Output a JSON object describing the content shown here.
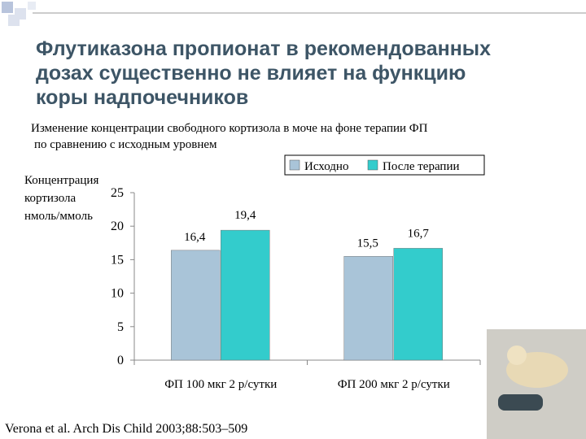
{
  "chart_data": {
    "type": "bar",
    "title": [
      "Флутиказона пропионат в рекомендованных",
      "дозах существенно не влияет на функцию",
      "коры надпочечников"
    ],
    "subtitle": [
      "Изменение концентрации свободного кортизола в моче на фоне терапии ФП",
      "по сравнению с исходным уровнем"
    ],
    "y_label": [
      "Концентрация",
      "кортизола",
      "нмоль/ммоль"
    ],
    "categories": [
      "ФП 100 мкг 2 р/сутки",
      "ФП 200 мкг 2 р/сутки"
    ],
    "series": [
      {
        "name": "Исходно",
        "color": "#a9c4d8",
        "values": [
          16.4,
          15.5
        ],
        "value_labels": [
          "16,4",
          "15,5"
        ]
      },
      {
        "name": "После терапии",
        "color": "#33cccc",
        "values": [
          19.4,
          16.7
        ],
        "value_labels": [
          "19,4",
          "16,7"
        ]
      }
    ],
    "ylim": [
      0,
      25
    ],
    "yticks": [
      0,
      5,
      10,
      15,
      20,
      25
    ],
    "source": "Verona et al. Arch Dis Child 2003;88:503–509"
  }
}
